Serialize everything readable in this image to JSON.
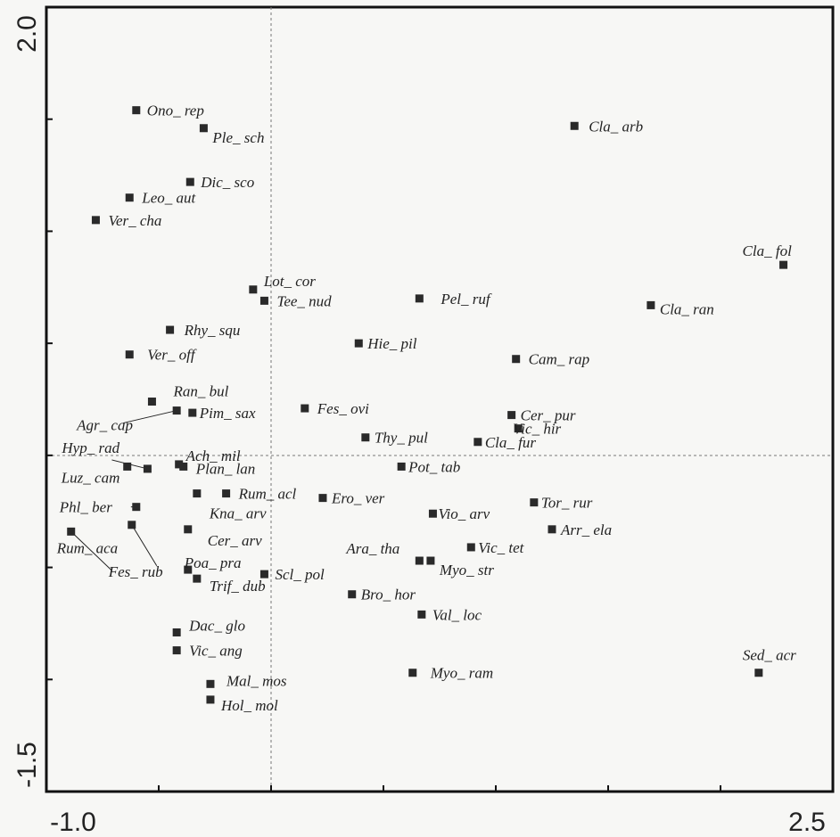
{
  "chart_data": {
    "type": "scatter",
    "title": "",
    "xlabel": "",
    "ylabel": "",
    "xlim": [
      -1.0,
      2.5
    ],
    "ylim": [
      -1.5,
      2.0
    ],
    "x_tick_labels": [
      "-1.0",
      "2.5"
    ],
    "y_tick_labels": [
      "2.0",
      "-1.5"
    ],
    "reference_lines": {
      "x": 0,
      "y": 0
    },
    "grid": false,
    "legend": "none",
    "marker": "square",
    "points": [
      {
        "label": "Ono_ rep",
        "x": -0.6,
        "y": 1.54
      },
      {
        "label": "Ple_ sch",
        "x": -0.3,
        "y": 1.46
      },
      {
        "label": "Cla_ arb",
        "x": 1.35,
        "y": 1.47
      },
      {
        "label": "Dic_ sco",
        "x": -0.36,
        "y": 1.22
      },
      {
        "label": "Leo_ aut",
        "x": -0.63,
        "y": 1.15
      },
      {
        "label": "Ver_ cha",
        "x": -0.78,
        "y": 1.05
      },
      {
        "label": "Cla_ fol",
        "x": 2.28,
        "y": 0.85
      },
      {
        "label": "Lot_ cor",
        "x": -0.08,
        "y": 0.74
      },
      {
        "label": "Tee_ nud",
        "x": -0.03,
        "y": 0.69
      },
      {
        "label": "Pel_ ruf",
        "x": 0.66,
        "y": 0.7
      },
      {
        "label": "Cla_ ran",
        "x": 1.69,
        "y": 0.67
      },
      {
        "label": "Rhy_ squ",
        "x": -0.45,
        "y": 0.56
      },
      {
        "label": "Hie_ pil",
        "x": 0.39,
        "y": 0.5
      },
      {
        "label": "Ver_ off",
        "x": -0.63,
        "y": 0.45
      },
      {
        "label": "Cam_ rap",
        "x": 1.09,
        "y": 0.43
      },
      {
        "label": "Ran_ bul",
        "x": -0.53,
        "y": 0.24
      },
      {
        "label": "Agr_ cap",
        "x": -0.42,
        "y": 0.2
      },
      {
        "label": "Pim_ sax",
        "x": -0.35,
        "y": 0.19
      },
      {
        "label": "Fes_ ovi",
        "x": 0.15,
        "y": 0.21
      },
      {
        "label": "Cer_ pur",
        "x": 1.07,
        "y": 0.18
      },
      {
        "label": "Vic_ hir",
        "x": 1.1,
        "y": 0.12
      },
      {
        "label": "Thy_ pul",
        "x": 0.42,
        "y": 0.08
      },
      {
        "label": "Cla_ fur",
        "x": 0.92,
        "y": 0.06
      },
      {
        "label": "Luz_ cam",
        "x": -0.64,
        "y": -0.05
      },
      {
        "label": "Hyp_ rad",
        "x": -0.55,
        "y": -0.06
      },
      {
        "label": "Ach_ mil",
        "x": -0.41,
        "y": -0.04
      },
      {
        "label": "Plan_ lan",
        "x": -0.39,
        "y": -0.05
      },
      {
        "label": "Pot_ tab",
        "x": 0.58,
        "y": -0.05
      },
      {
        "label": "Rum_ acl",
        "x": -0.2,
        "y": -0.17
      },
      {
        "label": "Kna_ arv",
        "x": -0.33,
        "y": -0.17
      },
      {
        "label": "Ero_ ver",
        "x": 0.23,
        "y": -0.19
      },
      {
        "label": "Phl_ ber",
        "x": -0.6,
        "y": -0.23
      },
      {
        "label": "Tor_ rur",
        "x": 1.17,
        "y": -0.21
      },
      {
        "label": "Vio_ arv",
        "x": 0.72,
        "y": -0.26
      },
      {
        "label": "Fes_ rub",
        "x": -0.62,
        "y": -0.31
      },
      {
        "label": "Rum_ aca",
        "x": -0.89,
        "y": -0.34
      },
      {
        "label": "Cer_ arv",
        "x": -0.37,
        "y": -0.33
      },
      {
        "label": "Arr_ ela",
        "x": 1.25,
        "y": -0.33
      },
      {
        "label": "Vic_ tet",
        "x": 0.89,
        "y": -0.41
      },
      {
        "label": "Ara_ tha",
        "x": 0.66,
        "y": -0.47
      },
      {
        "label": "Myo_ str",
        "x": 0.71,
        "y": -0.47
      },
      {
        "label": "Poa_ pra",
        "x": -0.37,
        "y": -0.51
      },
      {
        "label": "Scl_ pol",
        "x": -0.03,
        "y": -0.53
      },
      {
        "label": "Trif_ dub",
        "x": -0.33,
        "y": -0.55
      },
      {
        "label": "Bro_ hor",
        "x": 0.36,
        "y": -0.62
      },
      {
        "label": "Val_ loc",
        "x": 0.67,
        "y": -0.71
      },
      {
        "label": "Dac_ glo",
        "x": -0.42,
        "y": -0.79
      },
      {
        "label": "Vic_ ang",
        "x": -0.42,
        "y": -0.87
      },
      {
        "label": "Sed_ acr",
        "x": 2.17,
        "y": -0.97
      },
      {
        "label": "Myo_ ram",
        "x": 0.63,
        "y": -0.97
      },
      {
        "label": "Mal_ mos",
        "x": -0.27,
        "y": -1.02
      },
      {
        "label": "Hol_ mol",
        "x": -0.27,
        "y": -1.09
      }
    ]
  }
}
